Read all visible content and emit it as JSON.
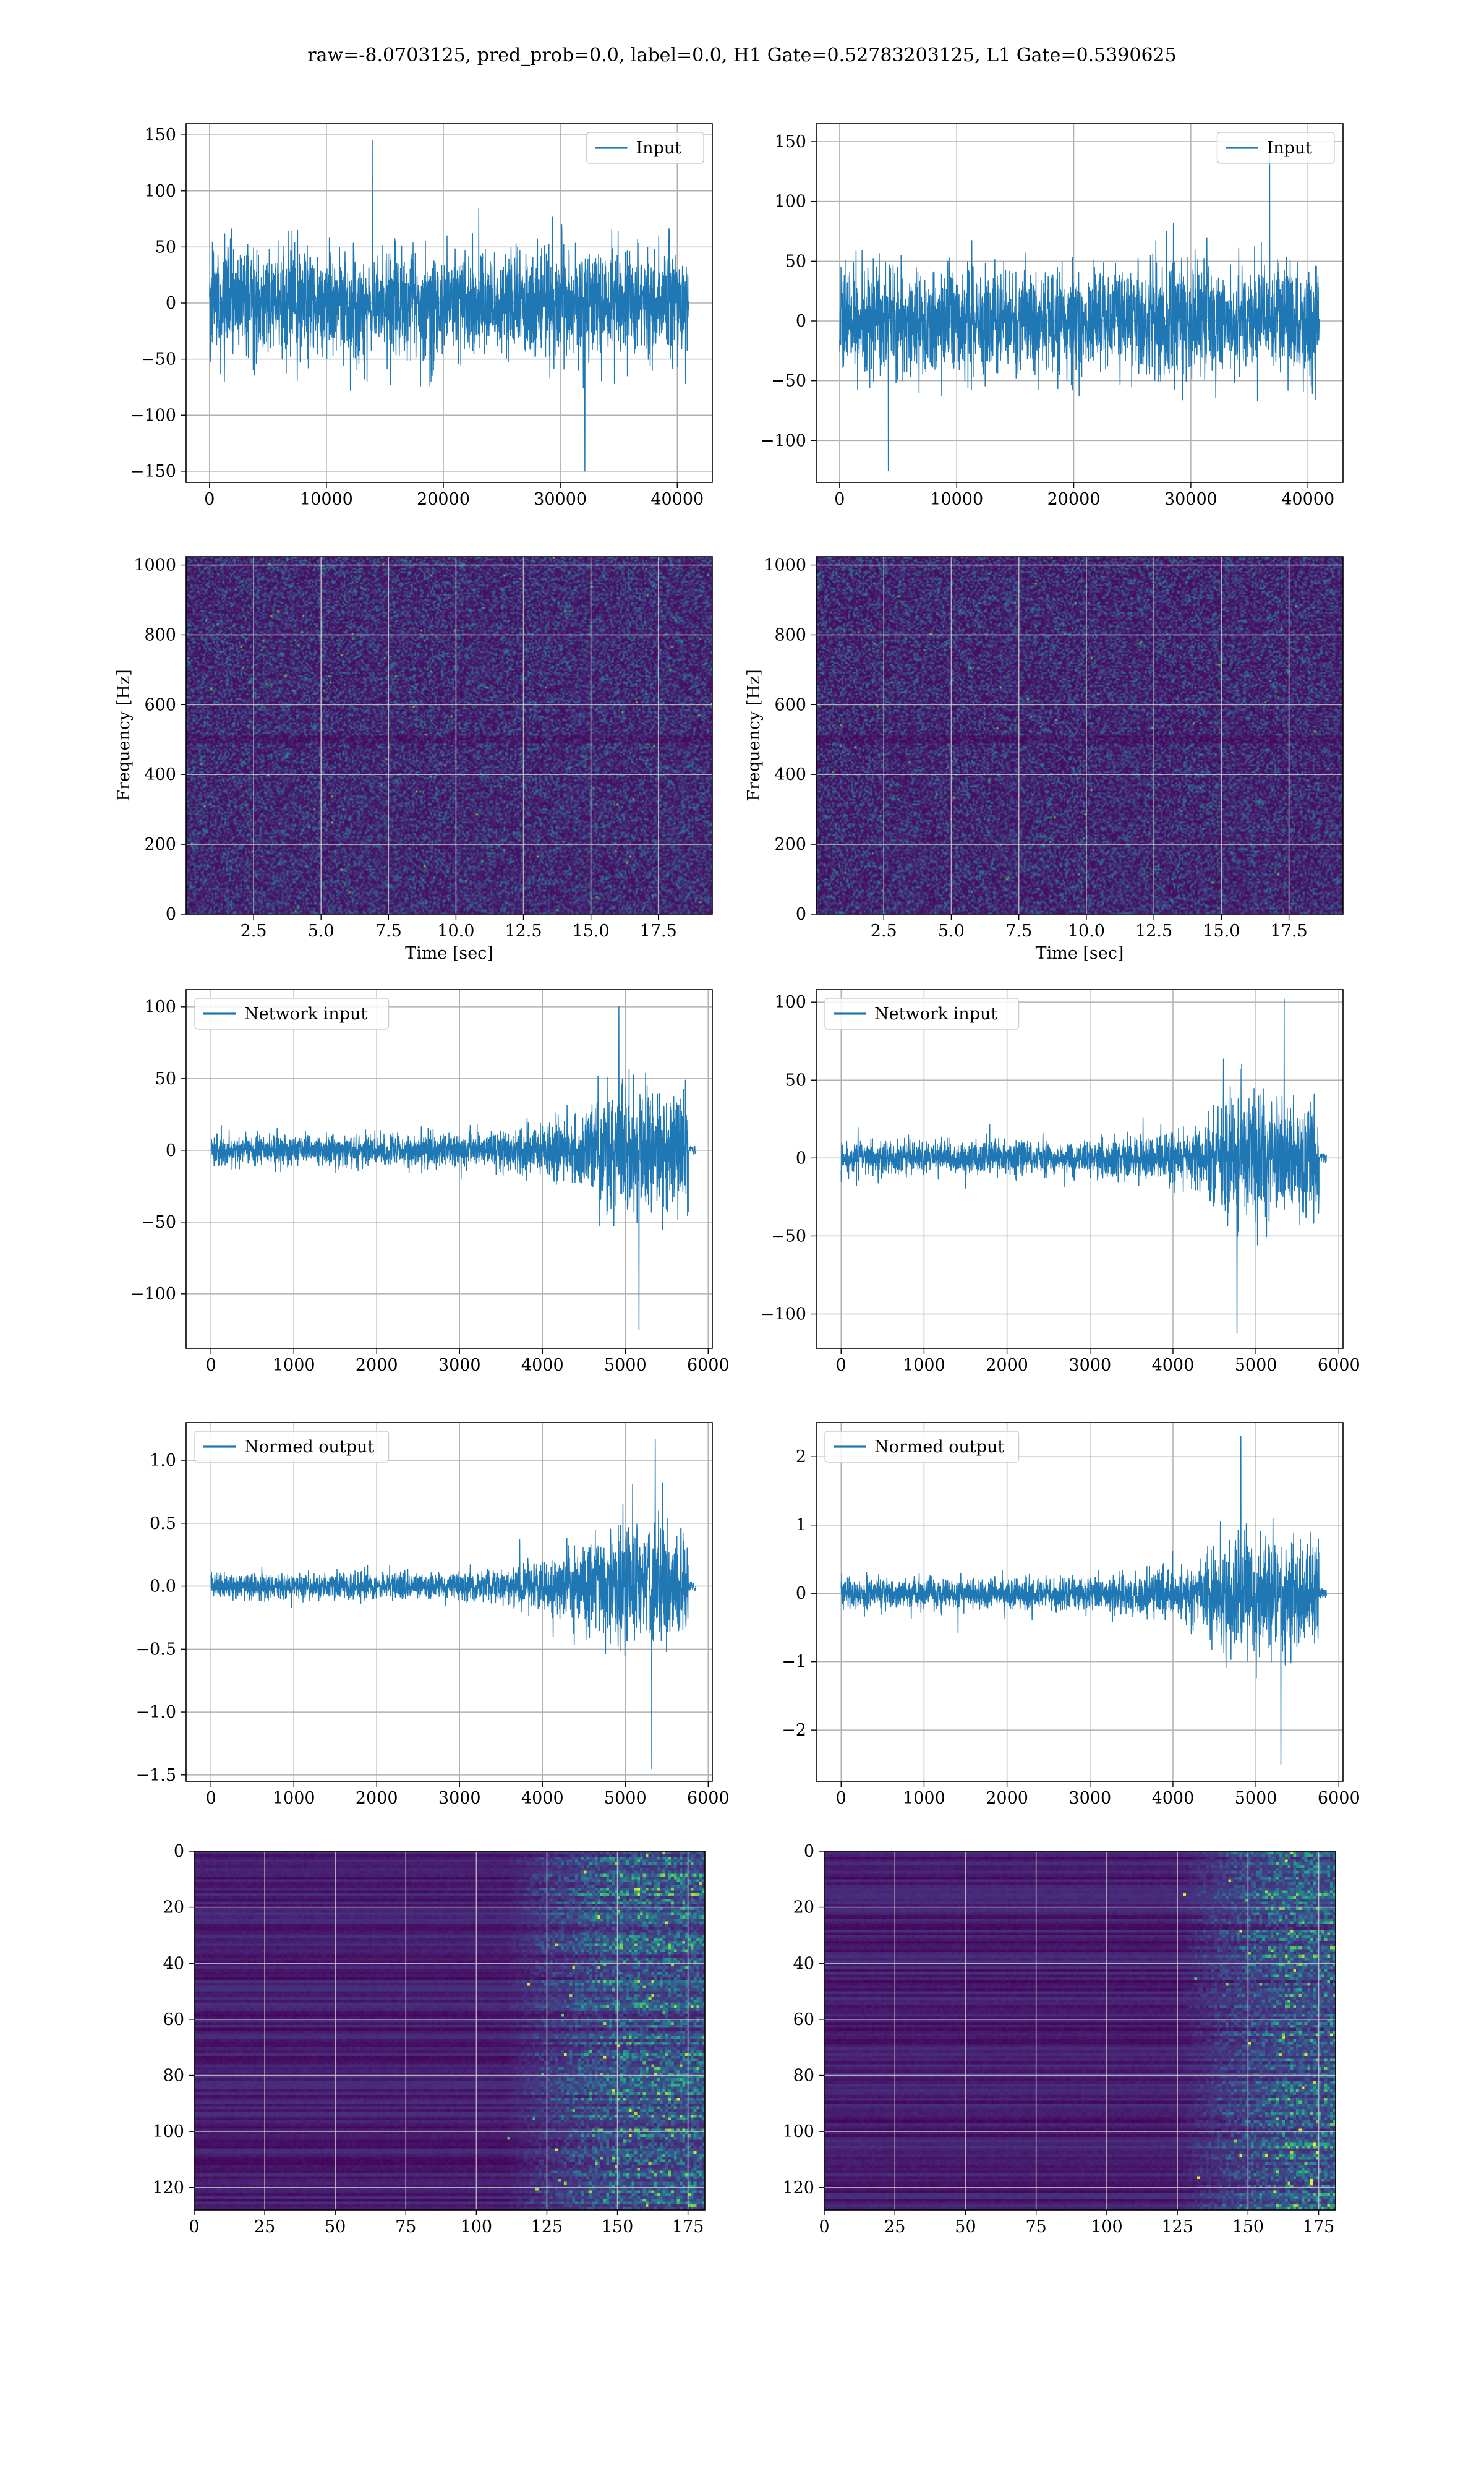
{
  "figure": {
    "suptitle": "raw=-8.0703125, pred_prob=0.0, label=0.0, H1 Gate=0.52783203125, L1 Gate=0.5390625"
  },
  "colors": {
    "series": "#1f77b4",
    "viridis": [
      "#440154",
      "#482878",
      "#3e4989",
      "#31688e",
      "#26828e",
      "#1f9e89",
      "#35b779",
      "#6ece58",
      "#b5de2b",
      "#fde725"
    ]
  },
  "chart_data": [
    {
      "id": "input-h1",
      "type": "line",
      "legend": "Input",
      "legend_loc": "upper right",
      "xlim": [
        -2000,
        43000
      ],
      "ylim": [
        -160,
        160
      ],
      "xticks": [
        0,
        10000,
        20000,
        30000,
        40000
      ],
      "xtick_labels": [
        "0",
        "10000",
        "20000",
        "30000",
        "40000"
      ],
      "yticks": [
        -150,
        -100,
        -50,
        0,
        50,
        100,
        150
      ],
      "ytick_labels": [
        "−150",
        "−100",
        "−50",
        "0",
        "50",
        "100",
        "150"
      ],
      "grid": true,
      "signal": {
        "x_range": [
          0,
          40960
        ],
        "envelope": [
          [
            0,
            65
          ],
          [
            40960,
            65
          ]
        ],
        "peak_max": 145,
        "peak_min": -150
      }
    },
    {
      "id": "input-l1",
      "type": "line",
      "legend": "Input",
      "legend_loc": "upper right",
      "xlim": [
        -2000,
        43000
      ],
      "ylim": [
        -135,
        165
      ],
      "xticks": [
        0,
        10000,
        20000,
        30000,
        40000
      ],
      "xtick_labels": [
        "0",
        "10000",
        "20000",
        "30000",
        "40000"
      ],
      "yticks": [
        -100,
        -50,
        0,
        50,
        100,
        150
      ],
      "ytick_labels": [
        "−100",
        "−50",
        "0",
        "50",
        "100",
        "150"
      ],
      "grid": true,
      "signal": {
        "x_range": [
          0,
          40960
        ],
        "envelope": [
          [
            0,
            62
          ],
          [
            40960,
            62
          ]
        ],
        "peak_max": 150,
        "peak_min": -125
      }
    },
    {
      "id": "spectrogram-h1",
      "type": "heatmap",
      "colormap": "viridis",
      "xlabel": "Time [sec]",
      "ylabel": "Frequency [Hz]",
      "xlim": [
        0,
        19.5
      ],
      "ylim": [
        0,
        1024
      ],
      "xticks": [
        2.5,
        5.0,
        7.5,
        10.0,
        12.5,
        15.0,
        17.5
      ],
      "xtick_labels": [
        "2.5",
        "5.0",
        "7.5",
        "10.0",
        "12.5",
        "15.0",
        "17.5"
      ],
      "yticks": [
        0,
        200,
        400,
        600,
        800,
        1000
      ],
      "ytick_labels": [
        "0",
        "200",
        "400",
        "600",
        "800",
        "1000"
      ],
      "grid": true,
      "value_range": [
        0,
        1
      ],
      "typical_level": 0.15
    },
    {
      "id": "spectrogram-l1",
      "type": "heatmap",
      "colormap": "viridis",
      "xlabel": "Time [sec]",
      "ylabel": "Frequency [Hz]",
      "xlim": [
        0,
        19.5
      ],
      "ylim": [
        0,
        1024
      ],
      "xticks": [
        2.5,
        5.0,
        7.5,
        10.0,
        12.5,
        15.0,
        17.5
      ],
      "xtick_labels": [
        "2.5",
        "5.0",
        "7.5",
        "10.0",
        "12.5",
        "15.0",
        "17.5"
      ],
      "yticks": [
        0,
        200,
        400,
        600,
        800,
        1000
      ],
      "ytick_labels": [
        "0",
        "200",
        "400",
        "600",
        "800",
        "1000"
      ],
      "grid": true,
      "value_range": [
        0,
        1
      ],
      "typical_level": 0.13
    },
    {
      "id": "network-input-h1",
      "type": "line",
      "legend": "Network input",
      "legend_loc": "upper left",
      "xlim": [
        -300,
        6050
      ],
      "ylim": [
        -138,
        112
      ],
      "xticks": [
        0,
        1000,
        2000,
        3000,
        4000,
        5000,
        6000
      ],
      "xtick_labels": [
        "0",
        "1000",
        "2000",
        "3000",
        "4000",
        "5000",
        "6000"
      ],
      "yticks": [
        -100,
        -50,
        0,
        50,
        100
      ],
      "ytick_labels": [
        "−100",
        "−50",
        "0",
        "50",
        "100"
      ],
      "grid": true,
      "signal": {
        "x_range": [
          0,
          5760
        ],
        "envelope": [
          [
            0,
            14
          ],
          [
            3000,
            15
          ],
          [
            4000,
            22
          ],
          [
            4500,
            40
          ],
          [
            4800,
            60
          ],
          [
            5200,
            65
          ],
          [
            5500,
            55
          ],
          [
            5760,
            55
          ]
        ],
        "peak_max": 100,
        "peak_min": -125,
        "tail": [
          5760,
          5850
        ]
      }
    },
    {
      "id": "network-input-l1",
      "type": "line",
      "legend": "Network input",
      "legend_loc": "upper left",
      "xlim": [
        -300,
        6050
      ],
      "ylim": [
        -122,
        108
      ],
      "xticks": [
        0,
        1000,
        2000,
        3000,
        4000,
        5000,
        6000
      ],
      "xtick_labels": [
        "0",
        "1000",
        "2000",
        "3000",
        "4000",
        "5000",
        "6000"
      ],
      "yticks": [
        -100,
        -50,
        0,
        50,
        100
      ],
      "ytick_labels": [
        "−100",
        "−50",
        "0",
        "50",
        "100"
      ],
      "grid": true,
      "signal": {
        "x_range": [
          0,
          5760
        ],
        "envelope": [
          [
            0,
            14
          ],
          [
            3000,
            15
          ],
          [
            4200,
            22
          ],
          [
            4600,
            45
          ],
          [
            4800,
            60
          ],
          [
            5300,
            55
          ],
          [
            5760,
            50
          ]
        ],
        "peak_max": 102,
        "peak_min": -112,
        "tail": [
          5760,
          5850
        ]
      }
    },
    {
      "id": "normed-output-h1",
      "type": "line",
      "legend": "Normed output",
      "legend_loc": "upper left",
      "xlim": [
        -300,
        6050
      ],
      "ylim": [
        -1.55,
        1.3
      ],
      "xticks": [
        0,
        1000,
        2000,
        3000,
        4000,
        5000,
        6000
      ],
      "xtick_labels": [
        "0",
        "1000",
        "2000",
        "3000",
        "4000",
        "5000",
        "6000"
      ],
      "yticks": [
        -1.5,
        -1.0,
        -0.5,
        0.0,
        0.5,
        1.0
      ],
      "ytick_labels": [
        "−1.5",
        "−1.0",
        "−0.5",
        "0.0",
        "0.5",
        "1.0"
      ],
      "grid": true,
      "signal": {
        "x_range": [
          0,
          5760
        ],
        "envelope": [
          [
            0,
            0.14
          ],
          [
            3000,
            0.15
          ],
          [
            4000,
            0.24
          ],
          [
            4500,
            0.45
          ],
          [
            4800,
            0.65
          ],
          [
            5200,
            0.7
          ],
          [
            5760,
            0.6
          ]
        ],
        "peak_max": 1.17,
        "peak_min": -1.45,
        "tail": [
          5760,
          5850
        ]
      }
    },
    {
      "id": "normed-output-l1",
      "type": "line",
      "legend": "Normed output",
      "legend_loc": "upper left",
      "xlim": [
        -300,
        6050
      ],
      "ylim": [
        -2.75,
        2.5
      ],
      "xticks": [
        0,
        1000,
        2000,
        3000,
        4000,
        5000,
        6000
      ],
      "xtick_labels": [
        "0",
        "1000",
        "2000",
        "3000",
        "4000",
        "5000",
        "6000"
      ],
      "yticks": [
        -2,
        -1,
        0,
        1,
        2
      ],
      "ytick_labels": [
        "−2",
        "−1",
        "0",
        "1",
        "2"
      ],
      "grid": true,
      "signal": {
        "x_range": [
          0,
          5760
        ],
        "envelope": [
          [
            0,
            0.3
          ],
          [
            3000,
            0.32
          ],
          [
            4200,
            0.5
          ],
          [
            4600,
            1.0
          ],
          [
            4800,
            1.35
          ],
          [
            5300,
            1.2
          ],
          [
            5760,
            1.1
          ]
        ],
        "peak_max": 2.3,
        "peak_min": -2.5,
        "tail": [
          5760,
          5850
        ]
      }
    },
    {
      "id": "feature-map-h1",
      "type": "heatmap",
      "colormap": "viridis",
      "xlim": [
        0,
        181
      ],
      "ylim": [
        128,
        0
      ],
      "xticks": [
        0,
        25,
        50,
        75,
        100,
        125,
        150,
        175
      ],
      "xtick_labels": [
        "0",
        "25",
        "50",
        "75",
        "100",
        "125",
        "150",
        "175"
      ],
      "yticks": [
        0,
        20,
        40,
        60,
        80,
        100,
        120
      ],
      "ytick_labels": [
        "0",
        "20",
        "40",
        "60",
        "80",
        "100",
        "120"
      ],
      "grid": true,
      "value_range": [
        0,
        1
      ],
      "rows": 128,
      "cols": 181,
      "activity_onset_col": 110
    },
    {
      "id": "feature-map-l1",
      "type": "heatmap",
      "colormap": "viridis",
      "xlim": [
        0,
        181
      ],
      "ylim": [
        128,
        0
      ],
      "xticks": [
        0,
        25,
        50,
        75,
        100,
        125,
        150,
        175
      ],
      "xtick_labels": [
        "0",
        "25",
        "50",
        "75",
        "100",
        "125",
        "150",
        "175"
      ],
      "yticks": [
        0,
        20,
        40,
        60,
        80,
        100,
        120
      ],
      "ytick_labels": [
        "0",
        "20",
        "40",
        "60",
        "80",
        "100",
        "120"
      ],
      "grid": true,
      "value_range": [
        0,
        1
      ],
      "rows": 128,
      "cols": 181,
      "activity_onset_col": 125
    }
  ]
}
